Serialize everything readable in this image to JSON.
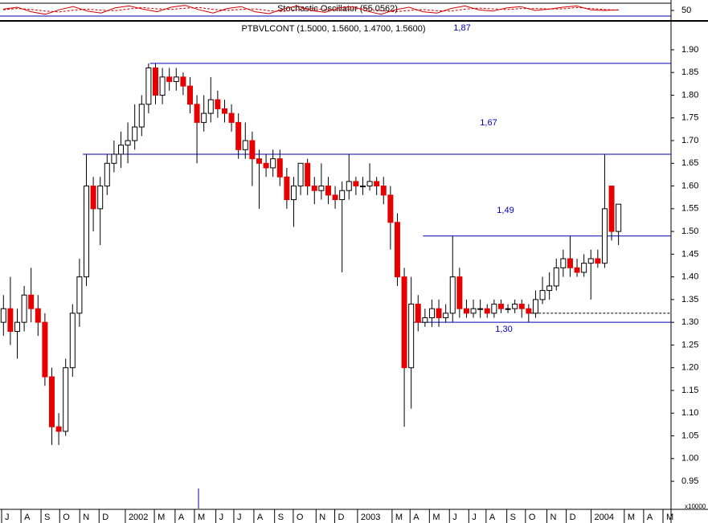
{
  "chart_data": {
    "type": "candlestick",
    "title": "PTBVLCONT (1.5000, 1.5600, 1.4700, 1.5600)",
    "y_label": "x10000",
    "up_color": "#ffffff",
    "down_color": "#e60000",
    "level_color": "#0000b0",
    "open": [
      1.3,
      1.33,
      1.28,
      1.3,
      1.36,
      1.33,
      1.3,
      1.18,
      1.07,
      1.06,
      1.2,
      1.32,
      1.4,
      1.6,
      1.55,
      1.6,
      1.65,
      1.67,
      1.69,
      1.7,
      1.73,
      1.78,
      1.86,
      1.8,
      1.84,
      1.83,
      1.84,
      1.82,
      1.78,
      1.74,
      1.76,
      1.79,
      1.77,
      1.76,
      1.74,
      1.68,
      1.7,
      1.66,
      1.65,
      1.64,
      1.66,
      1.62,
      1.57,
      1.6,
      1.65,
      1.6,
      1.59,
      1.6,
      1.58,
      1.57,
      1.59,
      1.61,
      1.6,
      1.6,
      1.61,
      1.6,
      1.58,
      1.52,
      1.4,
      1.2,
      1.34,
      1.3,
      1.31,
      1.33,
      1.31,
      1.32,
      1.4,
      1.33,
      1.32,
      1.33,
      1.33,
      1.32,
      1.34,
      1.33,
      1.33,
      1.34,
      1.33,
      1.32,
      1.35,
      1.37,
      1.38,
      1.42,
      1.44,
      1.42,
      1.41,
      1.43,
      1.44,
      1.43,
      1.6,
      1.5
    ],
    "high": [
      1.36,
      1.4,
      1.33,
      1.38,
      1.42,
      1.36,
      1.32,
      1.2,
      1.1,
      1.22,
      1.34,
      1.44,
      1.67,
      1.62,
      1.62,
      1.67,
      1.7,
      1.72,
      1.74,
      1.78,
      1.8,
      1.87,
      1.87,
      1.86,
      1.86,
      1.86,
      1.85,
      1.84,
      1.8,
      1.8,
      1.84,
      1.81,
      1.79,
      1.78,
      1.76,
      1.74,
      1.72,
      1.68,
      1.67,
      1.68,
      1.68,
      1.64,
      1.62,
      1.65,
      1.66,
      1.62,
      1.65,
      1.62,
      1.6,
      1.61,
      1.67,
      1.62,
      1.62,
      1.65,
      1.62,
      1.62,
      1.6,
      1.54,
      1.42,
      1.4,
      1.36,
      1.33,
      1.35,
      1.35,
      1.34,
      1.49,
      1.42,
      1.35,
      1.35,
      1.35,
      1.34,
      1.35,
      1.35,
      1.34,
      1.35,
      1.35,
      1.34,
      1.37,
      1.4,
      1.41,
      1.44,
      1.46,
      1.49,
      1.44,
      1.45,
      1.46,
      1.46,
      1.67,
      1.6,
      1.56
    ],
    "low": [
      1.27,
      1.25,
      1.22,
      1.28,
      1.3,
      1.27,
      1.16,
      1.03,
      1.03,
      1.05,
      1.18,
      1.29,
      1.38,
      1.5,
      1.47,
      1.58,
      1.63,
      1.64,
      1.65,
      1.68,
      1.71,
      1.76,
      1.78,
      1.78,
      1.81,
      1.81,
      1.8,
      1.76,
      1.65,
      1.72,
      1.74,
      1.75,
      1.74,
      1.72,
      1.66,
      1.66,
      1.6,
      1.55,
      1.62,
      1.62,
      1.6,
      1.55,
      1.51,
      1.58,
      1.58,
      1.56,
      1.57,
      1.56,
      1.55,
      1.41,
      1.57,
      1.58,
      1.58,
      1.59,
      1.58,
      1.56,
      1.46,
      1.38,
      1.07,
      1.11,
      1.28,
      1.29,
      1.29,
      1.29,
      1.3,
      1.3,
      1.31,
      1.31,
      1.31,
      1.31,
      1.31,
      1.31,
      1.32,
      1.32,
      1.32,
      1.31,
      1.3,
      1.31,
      1.34,
      1.35,
      1.37,
      1.4,
      1.4,
      1.4,
      1.4,
      1.35,
      1.42,
      1.42,
      1.48,
      1.47
    ],
    "close": [
      1.33,
      1.28,
      1.3,
      1.36,
      1.33,
      1.3,
      1.18,
      1.07,
      1.06,
      1.2,
      1.32,
      1.4,
      1.6,
      1.55,
      1.6,
      1.65,
      1.67,
      1.69,
      1.7,
      1.73,
      1.78,
      1.86,
      1.8,
      1.84,
      1.83,
      1.84,
      1.82,
      1.78,
      1.74,
      1.76,
      1.79,
      1.77,
      1.76,
      1.74,
      1.68,
      1.7,
      1.66,
      1.65,
      1.64,
      1.66,
      1.62,
      1.57,
      1.6,
      1.65,
      1.6,
      1.59,
      1.6,
      1.58,
      1.57,
      1.59,
      1.61,
      1.6,
      1.6,
      1.61,
      1.6,
      1.58,
      1.52,
      1.4,
      1.2,
      1.34,
      1.3,
      1.31,
      1.33,
      1.31,
      1.32,
      1.4,
      1.33,
      1.32,
      1.33,
      1.33,
      1.32,
      1.34,
      1.33,
      1.33,
      1.34,
      1.33,
      1.32,
      1.35,
      1.37,
      1.38,
      1.42,
      1.44,
      1.42,
      1.41,
      1.43,
      1.44,
      1.43,
      1.55,
      1.5,
      1.56
    ],
    "xlim": [
      -0.5,
      96.6
    ],
    "xticks": [
      {
        "value": 0.2,
        "label": "J"
      },
      {
        "value": 3.0,
        "label": "A"
      },
      {
        "value": 5.9,
        "label": "S"
      },
      {
        "value": 8.6,
        "label": "O"
      },
      {
        "value": 11.5,
        "label": "N"
      },
      {
        "value": 14.3,
        "label": "D"
      },
      {
        "value": 18.1,
        "label": "2002"
      },
      {
        "value": 22.3,
        "label": "M"
      },
      {
        "value": 25.3,
        "label": "A"
      },
      {
        "value": 28.1,
        "label": "M"
      },
      {
        "value": 31.2,
        "label": "J"
      },
      {
        "value": 33.8,
        "label": "J"
      },
      {
        "value": 36.7,
        "label": "A"
      },
      {
        "value": 39.7,
        "label": "S"
      },
      {
        "value": 42.4,
        "label": "O"
      },
      {
        "value": 45.7,
        "label": "N"
      },
      {
        "value": 48.4,
        "label": "D"
      },
      {
        "value": 51.7,
        "label": "2003"
      },
      {
        "value": 56.7,
        "label": "M"
      },
      {
        "value": 59.3,
        "label": "A"
      },
      {
        "value": 62.1,
        "label": "M"
      },
      {
        "value": 65.0,
        "label": "J"
      },
      {
        "value": 67.8,
        "label": "J"
      },
      {
        "value": 70.3,
        "label": "A"
      },
      {
        "value": 73.3,
        "label": "S"
      },
      {
        "value": 76.0,
        "label": "O"
      },
      {
        "value": 79.1,
        "label": "N"
      },
      {
        "value": 81.9,
        "label": "D"
      },
      {
        "value": 85.5,
        "label": "2004"
      },
      {
        "value": 90.3,
        "label": "M"
      },
      {
        "value": 93.1,
        "label": "A"
      },
      {
        "value": 95.9,
        "label": "M"
      }
    ],
    "ylim": [
      0.89,
      1.96
    ],
    "yticks": [
      {
        "value": 0.95,
        "label": "0.95"
      },
      {
        "value": 1.0,
        "label": "1.00"
      },
      {
        "value": 1.05,
        "label": "1.05"
      },
      {
        "value": 1.1,
        "label": "1.10"
      },
      {
        "value": 1.15,
        "label": "1.15"
      },
      {
        "value": 1.2,
        "label": "1.20"
      },
      {
        "value": 1.25,
        "label": "1.25"
      },
      {
        "value": 1.3,
        "label": "1.30"
      },
      {
        "value": 1.35,
        "label": "1.35"
      },
      {
        "value": 1.4,
        "label": "1.40"
      },
      {
        "value": 1.45,
        "label": "1.45"
      },
      {
        "value": 1.5,
        "label": "1.50"
      },
      {
        "value": 1.55,
        "label": "1.55"
      },
      {
        "value": 1.6,
        "label": "1.60"
      },
      {
        "value": 1.65,
        "label": "1.65"
      },
      {
        "value": 1.7,
        "label": "1.70"
      },
      {
        "value": 1.75,
        "label": "1.75"
      },
      {
        "value": 1.8,
        "label": "1.80"
      },
      {
        "value": 1.85,
        "label": "1.85"
      },
      {
        "value": 1.9,
        "label": "1.90"
      }
    ],
    "levels": [
      {
        "value": 1.87,
        "start": 21.2,
        "label": "1,87"
      },
      {
        "value": 1.67,
        "start": 11.5,
        "label": "1,67"
      },
      {
        "value": 1.49,
        "start": 60.7,
        "label": "1,49"
      },
      {
        "value": 1.3,
        "start": 58.8,
        "label": "1,30"
      }
    ],
    "dotted_level": {
      "value": 1.32,
      "start": 75.7
    },
    "oscillator": {
      "title": "Stochastic Oscillator (55.0562)",
      "ylim": [
        0,
        100
      ],
      "yticks": [
        50
      ],
      "color": "#d00000",
      "k": [
        60,
        75,
        40,
        20,
        55,
        80,
        45,
        30,
        70,
        85,
        60,
        40,
        75,
        90,
        55,
        30,
        65,
        80,
        40,
        25,
        60,
        85,
        50,
        35,
        70,
        80,
        45,
        20,
        55,
        75,
        40,
        30,
        65,
        85,
        55,
        45,
        70,
        80,
        50,
        60,
        75,
        85,
        55,
        50,
        55
      ],
      "d": [
        55,
        65,
        58,
        45,
        38,
        52,
        60,
        52,
        48,
        62,
        72,
        62,
        58,
        68,
        73,
        58,
        50,
        58,
        62,
        48,
        42,
        57,
        65,
        57,
        52,
        62,
        65,
        48,
        40,
        50,
        57,
        48,
        45,
        60,
        68,
        62,
        57,
        65,
        65,
        62,
        62,
        73,
        65,
        57,
        53
      ]
    }
  }
}
